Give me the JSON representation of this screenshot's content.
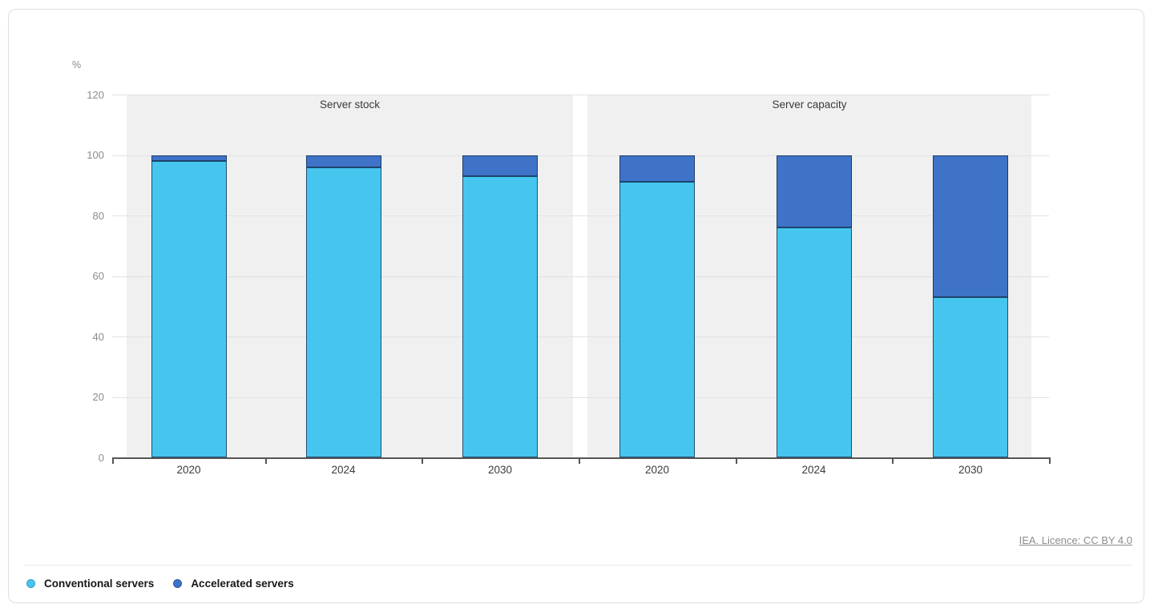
{
  "chart_data": {
    "type": "bar",
    "stacked": true,
    "unit_label": "%",
    "ylim": [
      0,
      120
    ],
    "yticks": [
      0,
      20,
      40,
      60,
      80,
      100,
      120
    ],
    "grid": true,
    "legend_position": "bottom-left",
    "categories": [
      "2020",
      "2024",
      "2030"
    ],
    "panels": [
      {
        "title": "Server stock",
        "series": [
          {
            "name": "Conventional servers",
            "color": "#46C6EF",
            "values": [
              98,
              96,
              93
            ]
          },
          {
            "name": "Accelerated servers",
            "color": "#3E73C7",
            "values": [
              2,
              4,
              7
            ]
          }
        ]
      },
      {
        "title": "Server capacity",
        "series": [
          {
            "name": "Conventional servers",
            "color": "#46C6EF",
            "values": [
              91,
              76,
              53
            ]
          },
          {
            "name": "Accelerated servers",
            "color": "#3E73C7",
            "values": [
              9,
              24,
              47
            ]
          }
        ]
      }
    ],
    "legend": [
      {
        "label": "Conventional servers",
        "color": "#46C6EF",
        "ring": "#2FA0CE"
      },
      {
        "label": "Accelerated servers",
        "color": "#3E73C7",
        "ring": "#2C5AA5"
      }
    ],
    "colors": {
      "bar_border": "#1E3F63",
      "panel_background": "#F0F0F0",
      "gridline": "#E2E2E2",
      "axis": "#555555"
    }
  },
  "footer": {
    "licence_link": "IEA. Licence: CC BY 4.0"
  }
}
